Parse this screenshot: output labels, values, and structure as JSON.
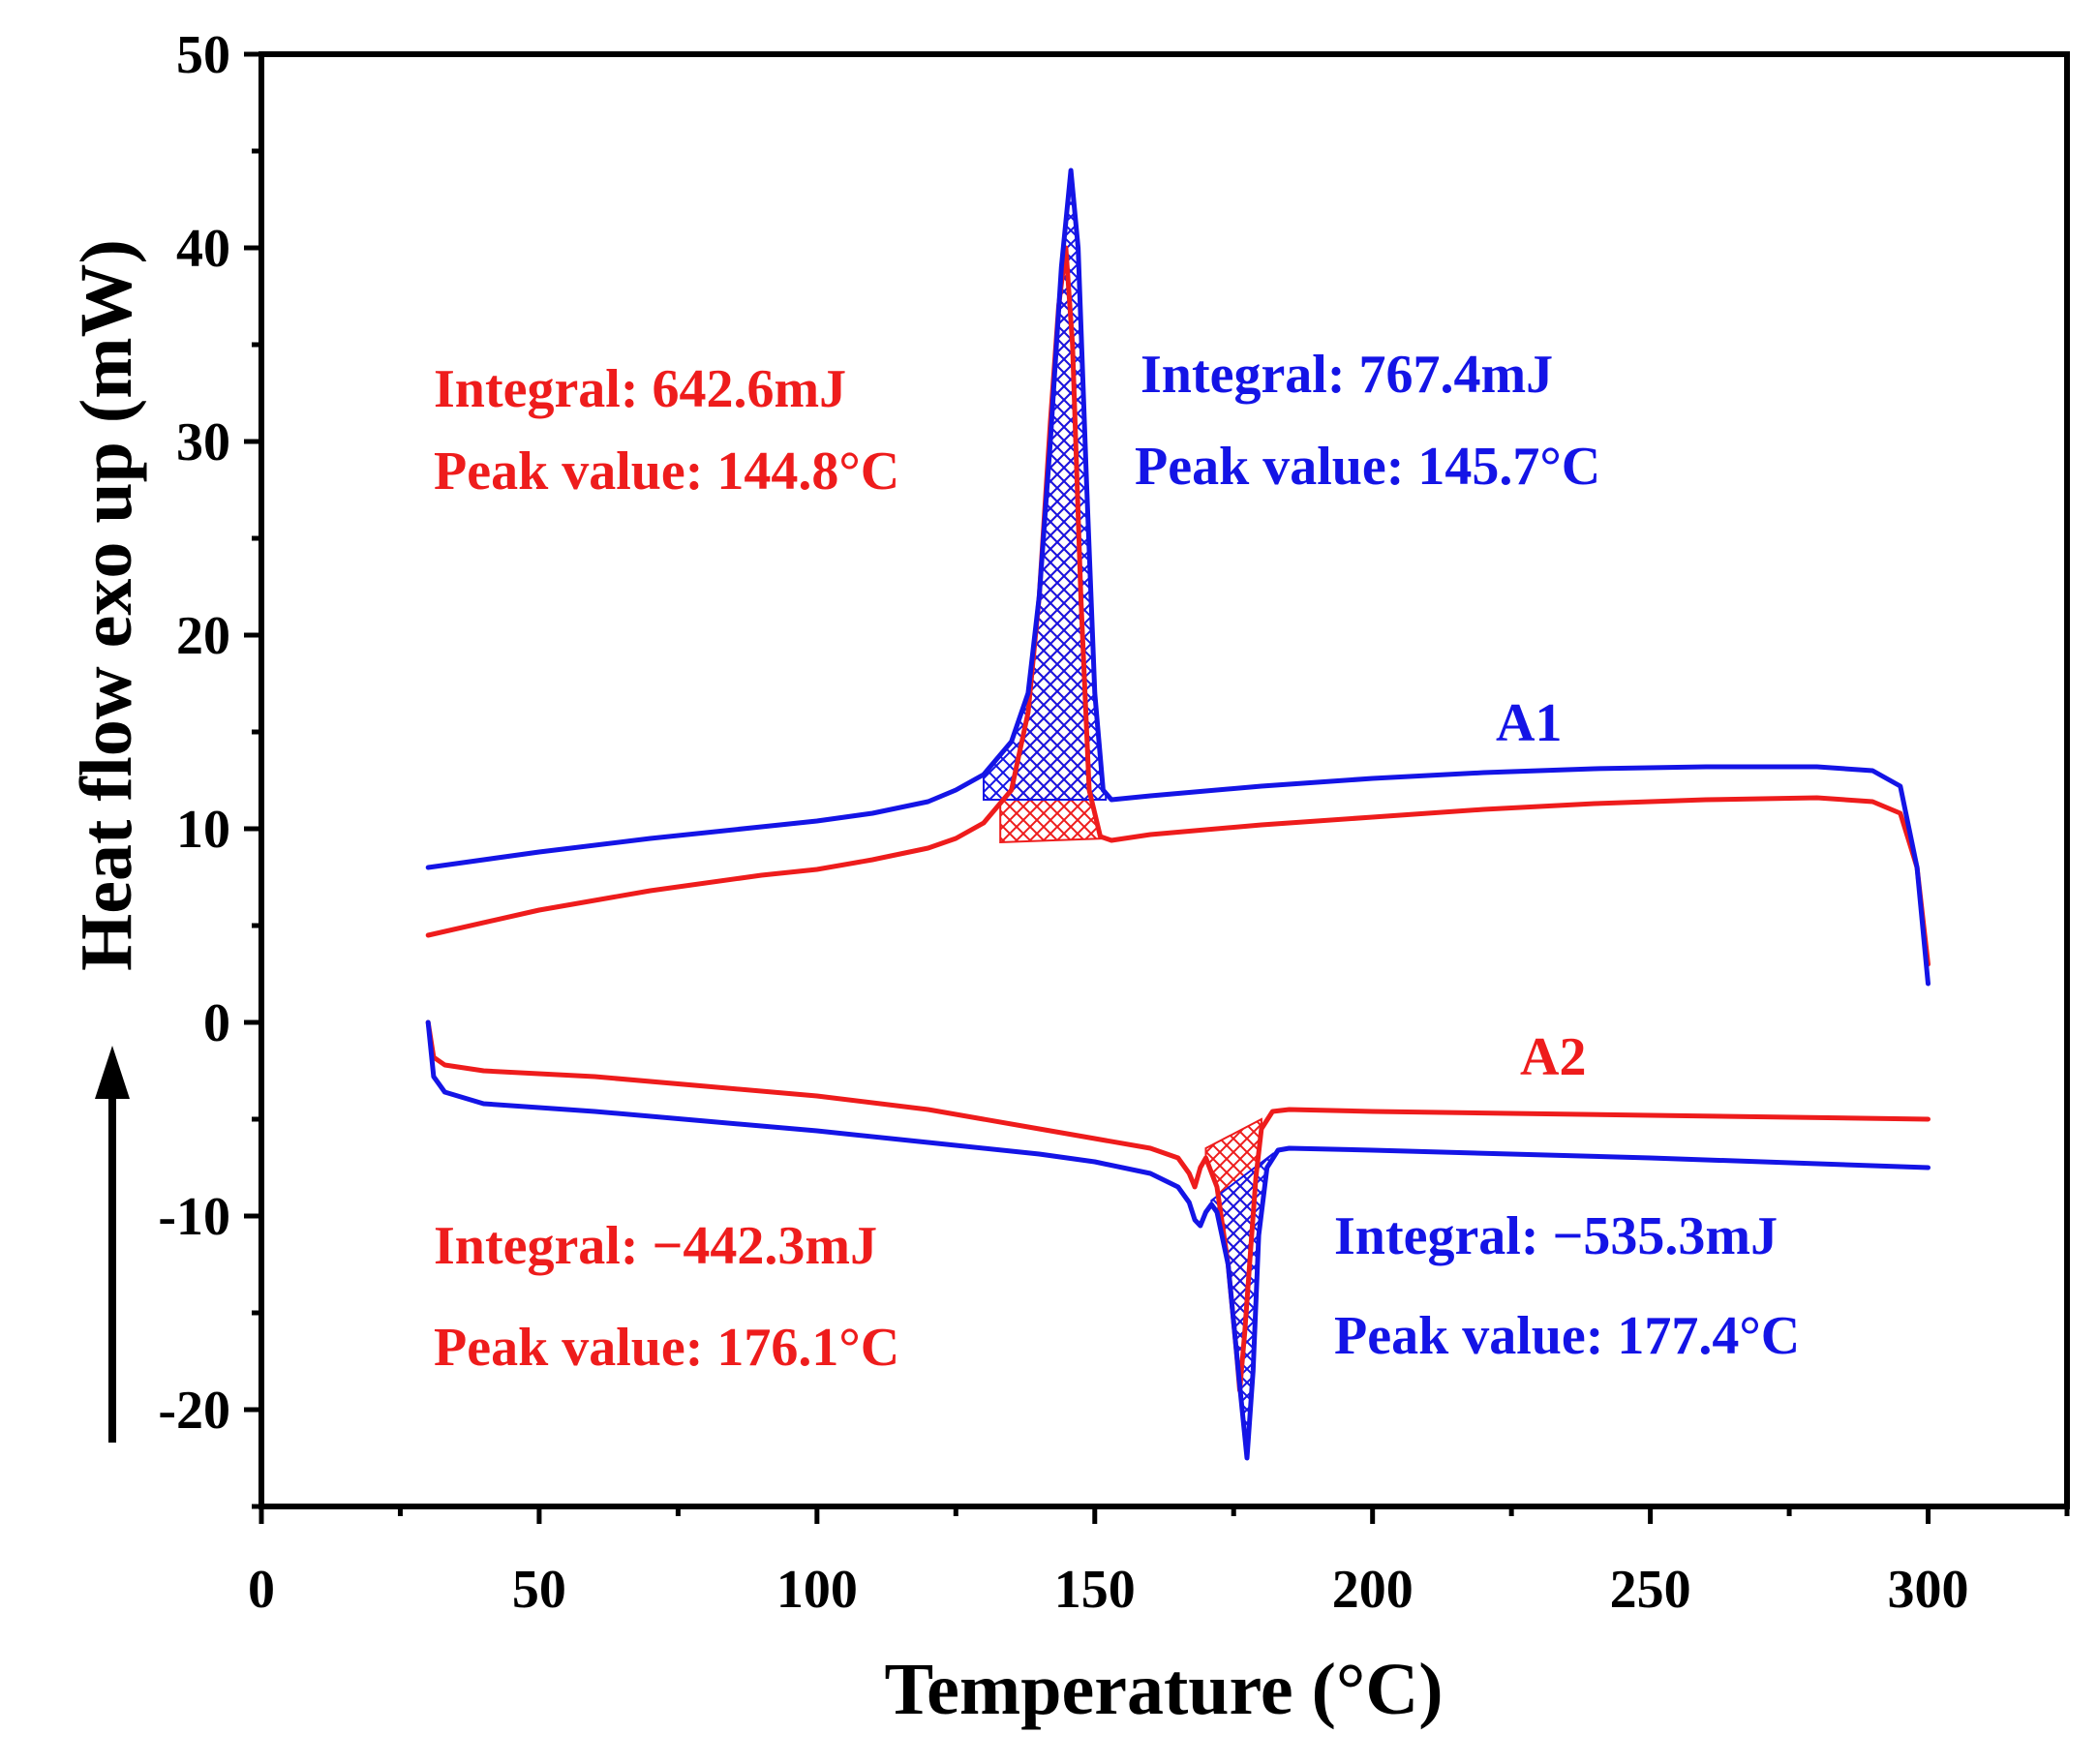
{
  "chart_data": {
    "type": "line",
    "xlabel": "Temperature (°C)",
    "ylabel": "Heat flow exo up (mW)",
    "xlim": [
      0,
      325
    ],
    "ylim": [
      -25,
      50
    ],
    "xticks": [
      0,
      50,
      100,
      150,
      200,
      250,
      300
    ],
    "yticks": [
      -20,
      -10,
      0,
      10,
      20,
      30,
      40,
      50
    ],
    "x_minor_step": 25,
    "y_minor_step": 5,
    "grid": false,
    "colors": {
      "red": "#ee1c1c",
      "blue": "#1414e6"
    },
    "series": [
      {
        "name": "A1 red",
        "color": "#ee1c1c",
        "x": [
          30,
          50,
          70,
          90,
          100,
          110,
          120,
          125,
          130,
          135,
          138,
          140,
          142,
          143.5,
          144.8,
          146,
          147.5,
          149,
          151,
          153,
          160,
          180,
          200,
          220,
          240,
          260,
          280,
          290,
          295,
          298,
          300
        ],
        "y": [
          4.5,
          5.8,
          6.8,
          7.6,
          7.9,
          8.4,
          9.0,
          9.5,
          10.3,
          12.0,
          16.0,
          22.0,
          31.0,
          37.0,
          40.0,
          35.0,
          22.0,
          12.0,
          9.6,
          9.4,
          9.7,
          10.2,
          10.6,
          11.0,
          11.3,
          11.5,
          11.6,
          11.4,
          10.8,
          8.0,
          3.0
        ]
      },
      {
        "name": "A1 blue",
        "color": "#1414e6",
        "x": [
          30,
          50,
          70,
          90,
          100,
          110,
          120,
          125,
          130,
          135,
          138,
          140,
          142,
          144,
          145.7,
          147,
          148.5,
          150,
          151.5,
          153,
          160,
          180,
          200,
          220,
          240,
          260,
          280,
          290,
          295,
          298,
          300
        ],
        "y": [
          8.0,
          8.8,
          9.5,
          10.1,
          10.4,
          10.8,
          11.4,
          12.0,
          12.8,
          14.5,
          17.0,
          22.0,
          30.0,
          39.0,
          44.0,
          40.0,
          28.0,
          17.0,
          12.0,
          11.5,
          11.7,
          12.2,
          12.6,
          12.9,
          13.1,
          13.2,
          13.2,
          13.0,
          12.2,
          8.0,
          2.0
        ]
      },
      {
        "name": "A2 red",
        "color": "#ee1c1c",
        "x": [
          30,
          31,
          33,
          40,
          60,
          80,
          100,
          120,
          140,
          150,
          160,
          165,
          167,
          168,
          169,
          170,
          172,
          174,
          175.5,
          176.1,
          177,
          178,
          179,
          180,
          182,
          185,
          200,
          250,
          300
        ],
        "y": [
          0,
          -1.8,
          -2.2,
          -2.5,
          -2.8,
          -3.3,
          -3.8,
          -4.5,
          -5.5,
          -6.0,
          -6.5,
          -7.0,
          -7.8,
          -8.5,
          -7.5,
          -7.0,
          -8.5,
          -12.5,
          -17.0,
          -19.0,
          -16.0,
          -12.0,
          -8.0,
          -5.5,
          -4.6,
          -4.5,
          -4.6,
          -4.8,
          -5.0
        ]
      },
      {
        "name": "A2 blue",
        "color": "#1414e6",
        "x": [
          30,
          31,
          33,
          40,
          60,
          80,
          100,
          120,
          140,
          150,
          160,
          165,
          167,
          168,
          169,
          170,
          171,
          172,
          174,
          176,
          177.4,
          178.5,
          179.5,
          181,
          183,
          185,
          200,
          250,
          300
        ],
        "y": [
          0,
          -2.8,
          -3.6,
          -4.2,
          -4.6,
          -5.1,
          -5.6,
          -6.2,
          -6.8,
          -7.2,
          -7.8,
          -8.5,
          -9.3,
          -10.2,
          -10.5,
          -9.8,
          -9.4,
          -9.8,
          -12.5,
          -18.5,
          -22.5,
          -18.0,
          -11.0,
          -7.5,
          -6.6,
          -6.5,
          -6.6,
          -7.0,
          -7.5
        ]
      }
    ],
    "hatched_regions": [
      {
        "series": "A1 red",
        "x_start": 133,
        "x_end": 152,
        "baseline": [
          9.3,
          9.5
        ],
        "pattern": "cross-hatch",
        "color": "#ee1c1c"
      },
      {
        "series": "A1 blue",
        "x_start": 130,
        "x_end": 152,
        "baseline": [
          11.5,
          11.5
        ],
        "pattern": "cross-hatch",
        "color": "#1414e6"
      },
      {
        "series": "A2 red",
        "x_start": 170,
        "x_end": 180,
        "baseline": [
          -6.5,
          -5.0
        ],
        "pattern": "cross-hatch",
        "color": "#ee1c1c"
      },
      {
        "series": "A2 blue",
        "x_start": 171,
        "x_end": 182,
        "baseline": [
          -9.2,
          -6.8
        ],
        "pattern": "cross-hatch",
        "color": "#1414e6"
      }
    ],
    "annotations": {
      "a1_red_integral": "Integral: 642.6mJ",
      "a1_red_peak": "Peak value: 144.8°C",
      "a1_blue_integral": "Integral: 767.4mJ",
      "a1_blue_peak": "Peak value: 145.7°C",
      "a2_red_integral": "Integral: −442.3mJ",
      "a2_red_peak": "Peak value: 176.1°C",
      "a2_blue_integral": "Integral: −535.3mJ",
      "a2_blue_peak": "Peak value: 177.4°C",
      "label_a1": "A1",
      "label_a2": "A2"
    }
  }
}
